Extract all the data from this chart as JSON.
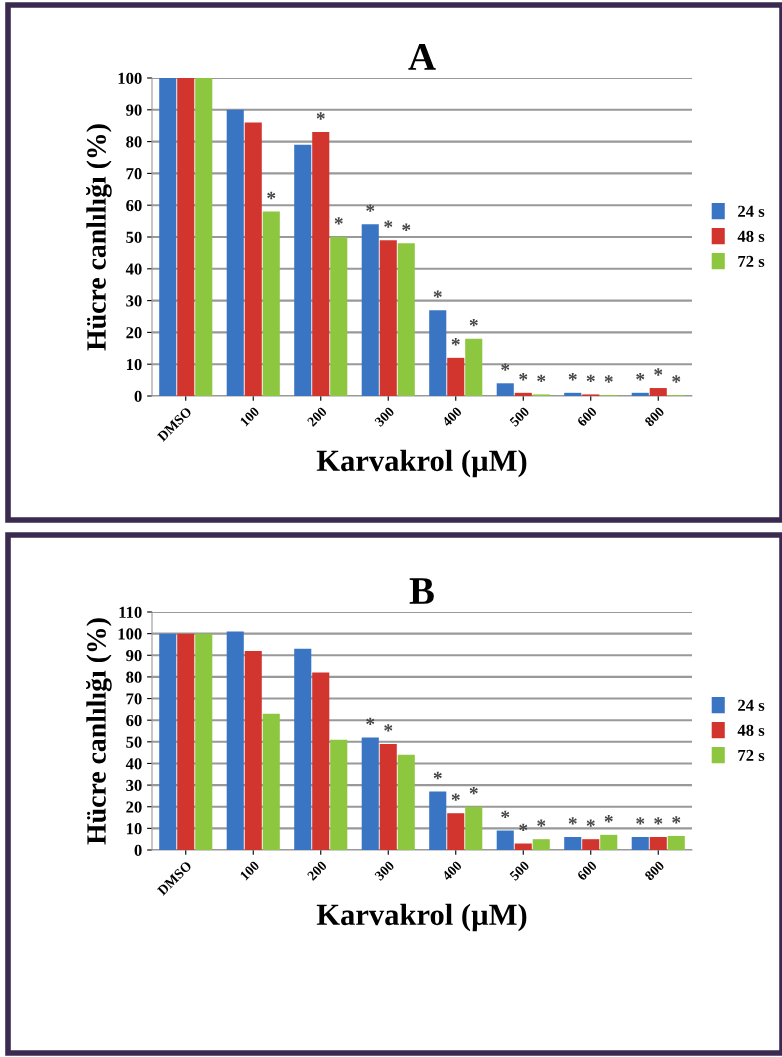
{
  "chart_data": [
    {
      "type": "bar",
      "title": "A",
      "xlabel": "Karvakrol (µM)",
      "ylabel": "Hücre canlılığı (%)",
      "categories": [
        "DMSO",
        "100",
        "200",
        "300",
        "400",
        "500",
        "600",
        "800"
      ],
      "series": [
        {
          "name": "24 s",
          "color": "#3a75c4",
          "values": [
            100,
            90,
            79,
            54,
            27,
            4,
            1,
            1
          ],
          "value_labels": [
            null,
            null,
            null,
            "*",
            "*",
            "*",
            "*",
            "*"
          ]
        },
        {
          "name": "48 s",
          "color": "#d2352e",
          "values": [
            100,
            86,
            83,
            49,
            12,
            1,
            0.5,
            2.5
          ],
          "value_labels": [
            null,
            null,
            "*",
            "*",
            "*",
            "*",
            "*",
            "*"
          ]
        },
        {
          "name": "72 s",
          "color": "#8dc63f",
          "values": [
            100,
            58,
            50,
            48,
            18,
            0.5,
            0.3,
            0.3
          ],
          "value_labels": [
            null,
            "*",
            "*",
            "*",
            "*",
            "*",
            "*",
            "*"
          ]
        }
      ],
      "ylim": [
        0,
        100
      ],
      "yticks": [
        0,
        10,
        20,
        30,
        40,
        50,
        60,
        70,
        80,
        90,
        100
      ],
      "grid": "y",
      "legend": "right"
    },
    {
      "type": "bar",
      "title": "B",
      "xlabel": "Karvakrol (µM)",
      "ylabel": "Hücre canlılığı (%)",
      "categories": [
        "DMSO",
        "100",
        "200",
        "300",
        "400",
        "500",
        "600",
        "800"
      ],
      "series": [
        {
          "name": "24 s",
          "color": "#3a75c4",
          "values": [
            100,
            101,
            93,
            52,
            27,
            9,
            6,
            6
          ],
          "value_labels": [
            null,
            null,
            null,
            "*",
            "*",
            "*",
            "*",
            "*"
          ]
        },
        {
          "name": "48 s",
          "color": "#d2352e",
          "values": [
            100,
            92,
            82,
            49,
            17,
            3,
            5,
            6
          ],
          "value_labels": [
            null,
            null,
            null,
            "*",
            "*",
            "*",
            "*",
            "*"
          ]
        },
        {
          "name": "72 s",
          "color": "#8dc63f",
          "values": [
            100,
            63,
            51,
            44,
            20,
            5,
            7,
            6.5
          ],
          "value_labels": [
            null,
            null,
            null,
            null,
            "*",
            "*",
            "*",
            "*"
          ]
        }
      ],
      "ylim": [
        0,
        110
      ],
      "yticks": [
        0,
        10,
        20,
        30,
        40,
        50,
        60,
        70,
        80,
        90,
        100,
        110
      ],
      "grid": "y",
      "legend": "right"
    }
  ]
}
